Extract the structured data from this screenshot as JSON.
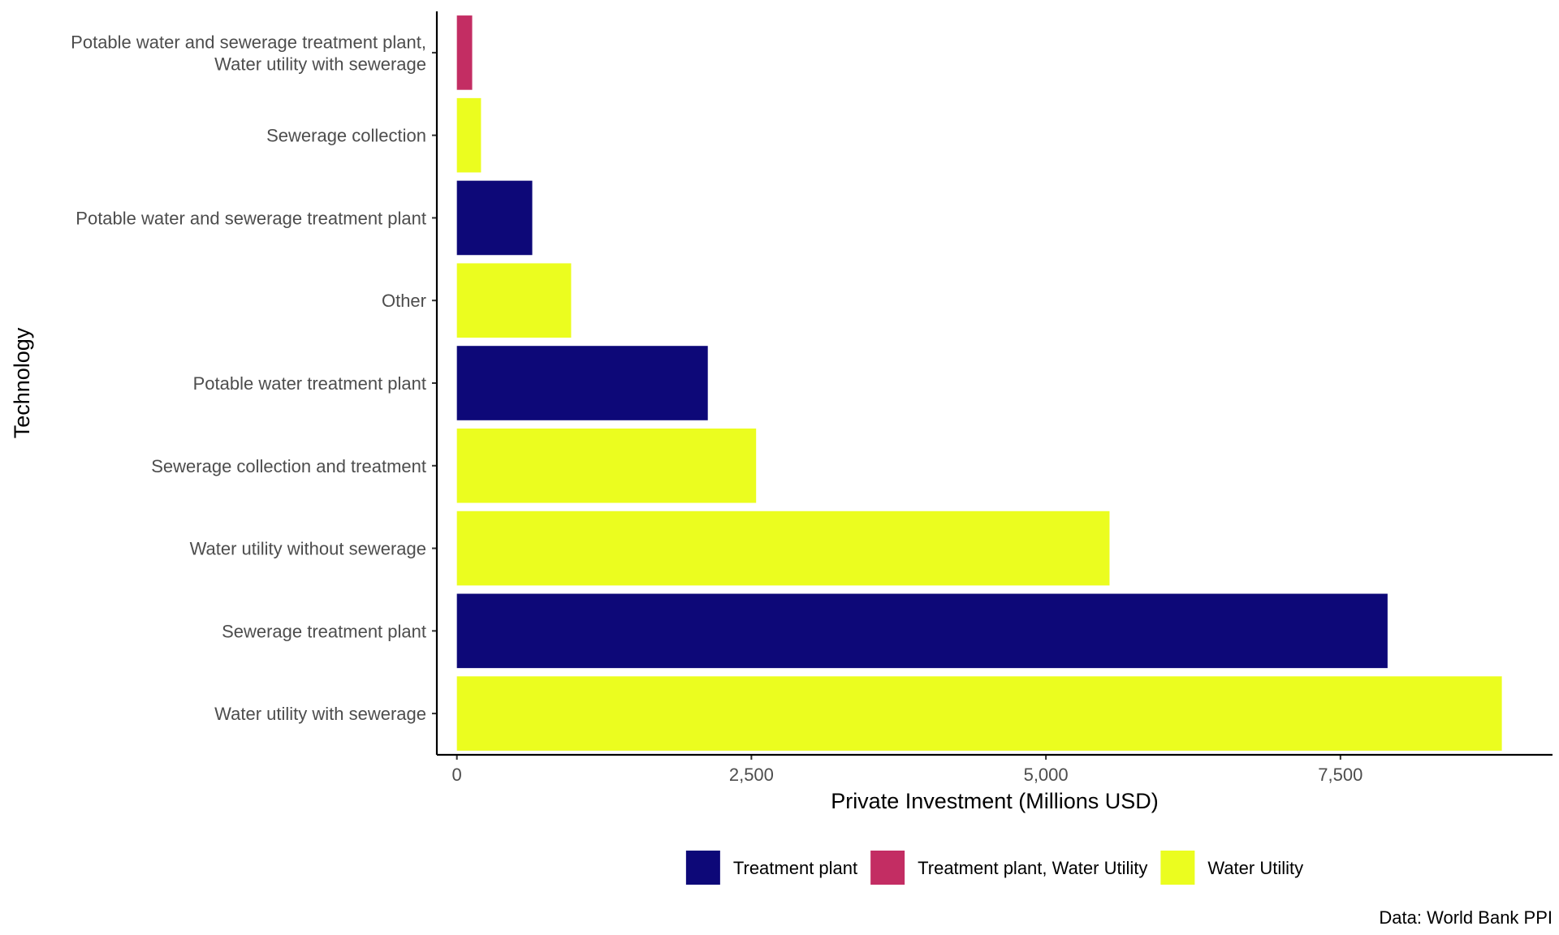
{
  "chart_data": {
    "type": "bar",
    "orientation": "horizontal",
    "xlabel": "Private Investment (Millions USD)",
    "ylabel": "Technology",
    "xlim": [
      -170,
      9300
    ],
    "xticks": [
      0,
      2500,
      5000,
      7500
    ],
    "xtick_labels": [
      "0",
      "2,500",
      "5,000",
      "7,500"
    ],
    "caption": "Data: World Bank PPI",
    "legend_position": "bottom",
    "grid": false,
    "categories": [
      [
        "Potable water and sewerage treatment plant,",
        "Water utility with sewerage"
      ],
      [
        "Sewerage collection"
      ],
      [
        "Potable water and sewerage treatment plant"
      ],
      [
        "Other"
      ],
      [
        "Potable water treatment plant"
      ],
      [
        "Sewerage collection and treatment"
      ],
      [
        "Water utility without sewerage"
      ],
      [
        "Sewerage treatment plant"
      ],
      [
        "Water utility with sewerage"
      ]
    ],
    "values": [
      130,
      205,
      640,
      970,
      2130,
      2540,
      5540,
      7900,
      8870
    ],
    "groups": [
      "Treatment plant, Water Utility",
      "Water Utility",
      "Treatment plant",
      "Water Utility",
      "Treatment plant",
      "Water Utility",
      "Water Utility",
      "Treatment plant",
      "Water Utility"
    ],
    "legend": [
      {
        "name": "Treatment plant",
        "color": "#0d0878"
      },
      {
        "name": "Treatment plant, Water Utility",
        "color": "#c32d63"
      },
      {
        "name": "Water Utility",
        "color": "#ebfd1f"
      }
    ]
  }
}
